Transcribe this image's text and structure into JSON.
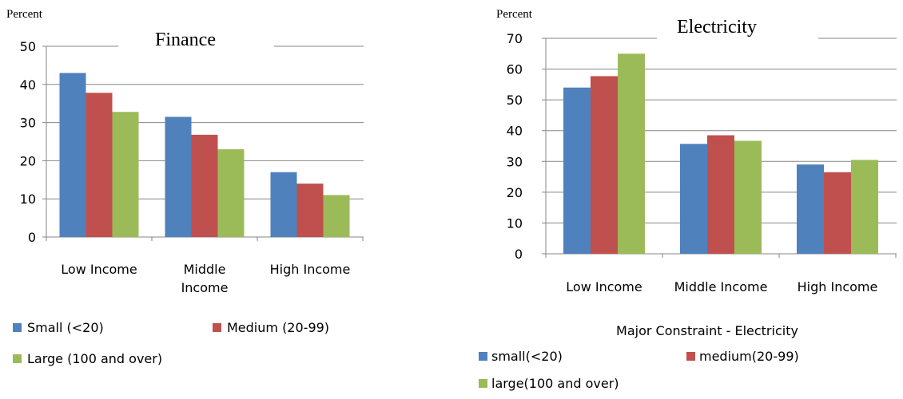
{
  "colors": {
    "series": [
      "#4f81bd",
      "#c0504d",
      "#9bbb59"
    ],
    "grid": "#868686",
    "text": "#000000",
    "background": "#ffffff"
  },
  "chart_data": [
    {
      "type": "bar",
      "title": "Finance",
      "ylabel": "Percent",
      "xlabel": "",
      "ylim": [
        0,
        50
      ],
      "yticks": [
        0,
        10,
        20,
        30,
        40,
        50
      ],
      "grid": true,
      "legend_position": "bottom",
      "categories": [
        [
          "Low Income"
        ],
        [
          "Middle",
          "Income"
        ],
        [
          "High Income"
        ]
      ],
      "series": [
        {
          "name": "Small (<20)",
          "values": [
            43,
            31.5,
            17
          ]
        },
        {
          "name": "Medium (20-99)",
          "values": [
            37.8,
            26.8,
            14
          ]
        },
        {
          "name": "Large (100 and over)",
          "values": [
            32.8,
            23,
            11
          ]
        }
      ]
    },
    {
      "type": "bar",
      "title": "Electricity",
      "ylabel": "Percent",
      "xlabel": "Major Constraint - Electricity",
      "ylim": [
        0,
        70
      ],
      "yticks": [
        0,
        10,
        20,
        30,
        40,
        50,
        60,
        70
      ],
      "grid": true,
      "legend_position": "bottom",
      "categories": [
        [
          "Low Income"
        ],
        [
          "Middle Income"
        ],
        [
          "High Income"
        ]
      ],
      "series": [
        {
          "name": "small(<20)",
          "values": [
            54,
            35.7,
            29
          ]
        },
        {
          "name": "medium(20-99)",
          "values": [
            57.7,
            38.5,
            26.5
          ]
        },
        {
          "name": "large(100 and over)",
          "values": [
            65,
            36.7,
            30.5
          ]
        }
      ]
    }
  ]
}
